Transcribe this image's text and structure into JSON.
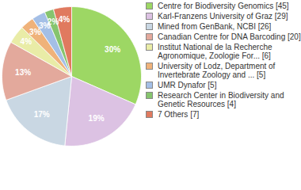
{
  "chart_data": {
    "type": "pie",
    "categories": [
      "Centre for Biodiversity Genomics [45]",
      "Karl-Franzens University of Graz [29]",
      "Mined from GenBank, NCBI [26]",
      "Canadian Centre for DNA Barcoding [20]",
      "Institut National de la Recherche Agronomique, Zoologie For... [6]",
      "University of Lodz, Department of Invertebrate Zoology and ... [5]",
      "UMR Dynafor [5]",
      "Research Center in Biodiversity and Genetic Resources [4]",
      "7 Others [7]"
    ],
    "values": [
      30,
      19,
      17,
      13,
      4,
      3,
      3,
      2,
      4
    ],
    "value_labels": [
      "30%",
      "19%",
      "17%",
      "13%",
      "4%",
      "3%",
      "3%",
      "2%",
      "4%"
    ],
    "colors": [
      "#9dd764",
      "#dcc2e3",
      "#c9d7e3",
      "#e3a99c",
      "#e9eca7",
      "#efb27a",
      "#a4bfe6",
      "#86c46e",
      "#e07a5f"
    ],
    "data_labels": true,
    "legend": "right"
  }
}
